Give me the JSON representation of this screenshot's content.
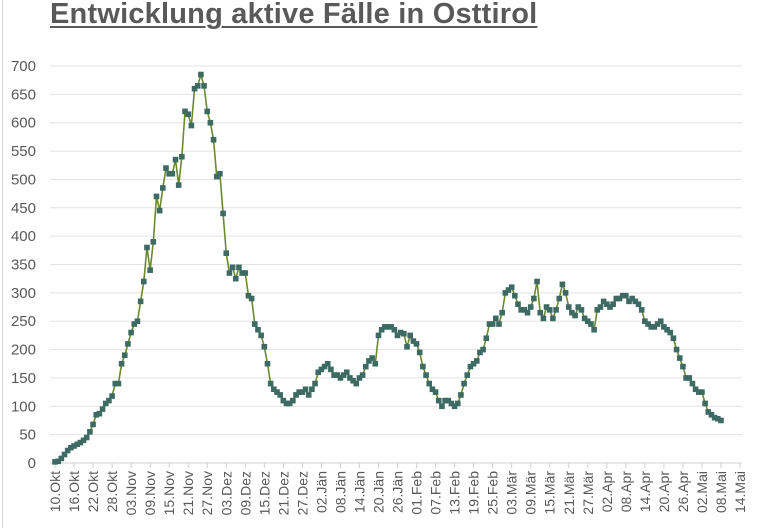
{
  "chart_data": {
    "type": "line",
    "title": "Entwicklung aktive Fälle in Osttirol",
    "xlabel": "",
    "ylabel": "",
    "ylim": [
      0,
      700
    ],
    "yticks": [
      0,
      50,
      100,
      150,
      200,
      250,
      300,
      350,
      400,
      450,
      500,
      550,
      600,
      650,
      700
    ],
    "grid": true,
    "legend": false,
    "x_start": "10.Okt",
    "x_end": "14.Mai",
    "x_tick_labels": [
      "10.Okt",
      "16.Okt",
      "22.Okt",
      "28.Okt",
      "03.Nov",
      "09.Nov",
      "15.Nov",
      "21.Nov",
      "27.Nov",
      "03.Dez",
      "09.Dez",
      "15.Dez",
      "21.Dez",
      "27.Dez",
      "02.Jän",
      "08.Jän",
      "14.Jän",
      "20.Jän",
      "26.Jän",
      "01.Feb",
      "07.Feb",
      "13.Feb",
      "19.Feb",
      "25.Feb",
      "03.Mär",
      "09.Mär",
      "15.Mär",
      "21.Mär",
      "27.Mär",
      "02.Apr",
      "08.Apr",
      "14.Apr",
      "20.Apr",
      "26.Apr",
      "02.Mai",
      "08.Mai",
      "14.Mai"
    ],
    "x_tick_step_days": 6,
    "series": [
      {
        "name": "aktive Fälle",
        "line_color": "#6b8a2f",
        "marker_color": "#3d6b63",
        "values": [
          2,
          3,
          8,
          15,
          22,
          27,
          30,
          33,
          36,
          40,
          45,
          55,
          68,
          85,
          87,
          95,
          105,
          110,
          118,
          140,
          140,
          175,
          190,
          210,
          230,
          245,
          250,
          285,
          320,
          380,
          340,
          390,
          470,
          445,
          485,
          520,
          510,
          510,
          535,
          490,
          540,
          620,
          615,
          595,
          660,
          665,
          685,
          665,
          620,
          600,
          570,
          505,
          510,
          440,
          370,
          335,
          345,
          325,
          345,
          335,
          335,
          295,
          290,
          245,
          235,
          225,
          205,
          175,
          140,
          130,
          125,
          120,
          110,
          105,
          105,
          110,
          120,
          125,
          125,
          130,
          120,
          130,
          140,
          160,
          165,
          170,
          175,
          165,
          155,
          155,
          150,
          155,
          160,
          150,
          145,
          140,
          150,
          155,
          170,
          180,
          185,
          175,
          225,
          235,
          240,
          240,
          240,
          235,
          225,
          230,
          228,
          205,
          225,
          215,
          210,
          195,
          170,
          155,
          140,
          130,
          125,
          110,
          100,
          110,
          110,
          105,
          100,
          105,
          120,
          140,
          155,
          170,
          175,
          180,
          195,
          200,
          220,
          245,
          245,
          255,
          245,
          265,
          300,
          305,
          310,
          295,
          280,
          270,
          270,
          265,
          275,
          290,
          320,
          265,
          255,
          275,
          270,
          255,
          270,
          290,
          315,
          300,
          275,
          265,
          260,
          275,
          270,
          255,
          250,
          245,
          235,
          270,
          275,
          285,
          280,
          275,
          280,
          290,
          290,
          295,
          295,
          285,
          290,
          285,
          280,
          270,
          250,
          245,
          240,
          240,
          245,
          250,
          240,
          235,
          230,
          220,
          200,
          185,
          170,
          150,
          150,
          140,
          130,
          125,
          125,
          105,
          90,
          85,
          80,
          78,
          75
        ]
      }
    ]
  }
}
